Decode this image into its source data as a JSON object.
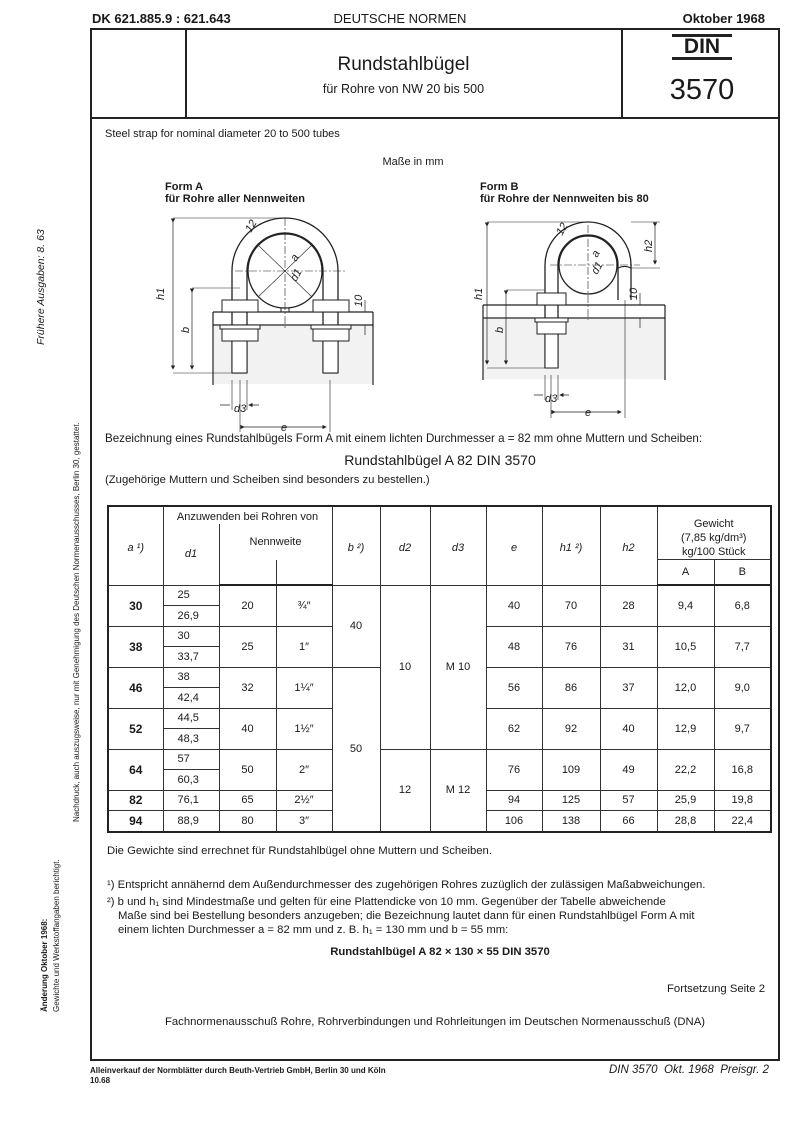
{
  "header": {
    "dk": "DK 621.885.9 : 621.643",
    "publisher": "DEUTSCHE NORMEN",
    "date": "Oktober 1968"
  },
  "title": {
    "main": "Rundstahlbügel",
    "sub": "für Rohre von NW 20 bis 500",
    "din_logo": "DIN",
    "number": "3570"
  },
  "english_title": "Steel strap for nominal diameter 20 to 500 tubes",
  "units_note": "Maße in mm",
  "form_a": {
    "title1": "Form A",
    "title2": "für Rohre aller Nennweiten",
    "labels": {
      "h1": "h1",
      "b": "b",
      "d1": "d1",
      "a": "a",
      "r": "12",
      "ten": "10",
      "d3": "d3",
      "e": "e"
    }
  },
  "form_b": {
    "title1": "Form B",
    "title2": "für Rohre der Nennweiten bis 80",
    "labels": {
      "h1": "h1",
      "h2": "h2",
      "b": "b",
      "d1": "d1",
      "a": "a",
      "r": "12",
      "ten": "10",
      "d3": "d3",
      "e": "e"
    }
  },
  "designation": {
    "intro": "Bezeichnung eines Rundstahlbügels Form A mit einem lichten Durchmesser a = 82 mm ohne Muttern und Scheiben:",
    "example": "Rundstahlbügel A 82 DIN 3570",
    "note": "(Zugehörige Muttern und Scheiben sind besonders zu bestellen.)"
  },
  "table": {
    "headers": {
      "a": "a ¹)",
      "group": "Anzuwenden bei Rohren von",
      "d1": "d1",
      "nennweite": "Nennweite",
      "b": "b ²)",
      "d2": "d2",
      "d3": "d3",
      "e": "e",
      "h1": "h1 ²)",
      "h2": "h2",
      "gewicht": "Gewicht",
      "gewicht_density": "(7,85 kg/dm³)",
      "gewicht_unit": "kg/100 Stück",
      "A": "A",
      "B": "B"
    },
    "rows": [
      {
        "a": "30",
        "d1": [
          "25",
          "26,9"
        ],
        "nw": "20",
        "inch": "¾″",
        "e": "40",
        "h1": "70",
        "h2": "28",
        "A": "9,4",
        "B": "6,8"
      },
      {
        "a": "38",
        "d1": [
          "30",
          "33,7"
        ],
        "nw": "25",
        "inch": "1″",
        "e": "48",
        "h1": "76",
        "h2": "31",
        "A": "10,5",
        "B": "7,7"
      },
      {
        "a": "46",
        "d1": [
          "38",
          "42,4"
        ],
        "nw": "32",
        "inch": "1¼″",
        "e": "56",
        "h1": "86",
        "h2": "37",
        "A": "12,0",
        "B": "9,0"
      },
      {
        "a": "52",
        "d1": [
          "44,5",
          "48,3"
        ],
        "nw": "40",
        "inch": "1½″",
        "e": "62",
        "h1": "92",
        "h2": "40",
        "A": "12,9",
        "B": "9,7"
      },
      {
        "a": "64",
        "d1": [
          "57",
          "60,3"
        ],
        "nw": "50",
        "inch": "2″",
        "e": "76",
        "h1": "109",
        "h2": "49",
        "A": "22,2",
        "B": "16,8"
      },
      {
        "a": "82",
        "d1": [
          "76,1"
        ],
        "nw": "65",
        "inch": "2½″",
        "e": "94",
        "h1": "125",
        "h2": "57",
        "A": "25,9",
        "B": "19,8"
      },
      {
        "a": "94",
        "d1": [
          "88,9"
        ],
        "nw": "80",
        "inch": "3″",
        "e": "106",
        "h1": "138",
        "h2": "66",
        "A": "28,8",
        "B": "22,4"
      }
    ],
    "b_groups": [
      "40",
      "50"
    ],
    "d2_groups": [
      "10",
      "12"
    ],
    "d3_groups": [
      "M 10",
      "M 12"
    ]
  },
  "weights_note": "Die Gewichte sind errechnet für Rundstahlbügel ohne Muttern und Scheiben.",
  "footnotes": {
    "f1": "¹) Entspricht annähernd dem Außendurchmesser des zugehörigen Rohres zuzüglich der zulässigen Maßabweichungen.",
    "f2_line1": "²) b und h₁ sind Mindestmaße und gelten für eine Plattendicke von 10 mm. Gegenüber der Tabelle abweichende",
    "f2_line2": "Maße sind bei Bestellung besonders anzugeben; die Bezeichnung lautet dann für einen Rundstahlbügel Form A mit",
    "f2_line3": "einem lichten Durchmesser a = 82 mm und z. B. h₁ = 130 mm und b = 55 mm:",
    "f2_example": "Rundstahlbügel A 82 × 130 × 55 DIN 3570"
  },
  "continuation": "Fortsetzung Seite 2",
  "committee": "Fachnormenausschuß Rohre, Rohrverbindungen und Rohrleitungen im Deutschen Normenausschuß (DNA)",
  "footer": {
    "sales": "Alleinverkauf der Normblätter durch Beuth-Vertrieb GmbH, Berlin 30 und Köln",
    "code": "10.68",
    "ref": "DIN 3570  Okt. 1968  Preisgr. 2"
  },
  "margin": {
    "previous": "Frühere Ausgaben: 8. 63",
    "reprint": "Nachdruck, auch auszugsweise, nur mit Genehmigung des Deutschen Normenausschusses, Berlin 30, gestattet.",
    "change_title": "Änderung Oktober 1968:",
    "change_text": "Gewichte und Werkstoffangaben berichtigt."
  }
}
